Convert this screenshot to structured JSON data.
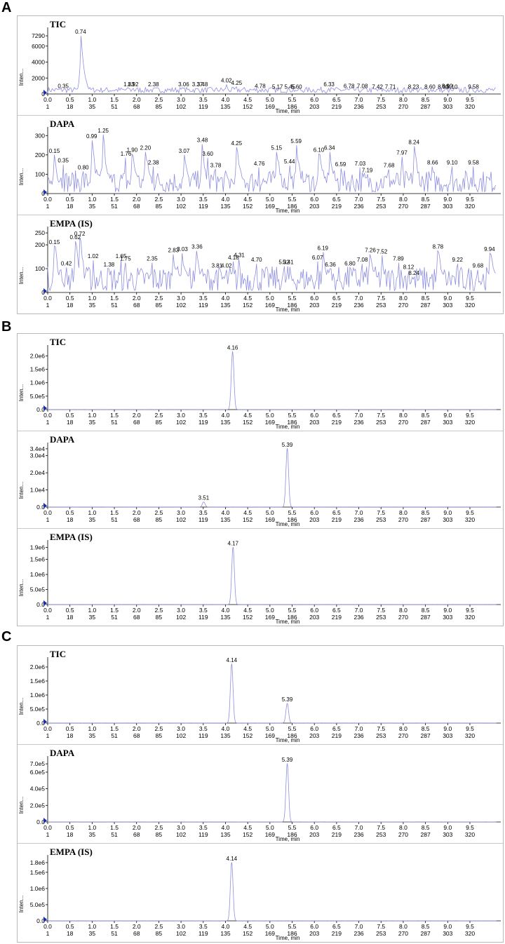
{
  "figure": {
    "sections": [
      {
        "letter": "A",
        "panels": [
          {
            "title": "TIC",
            "ylabel": "Inten...",
            "xlabel": "Time, min",
            "ymax": 8000,
            "y_ticks": [
              {
                "v": 0,
                "label": "0"
              },
              {
                "v": 2000,
                "label": "2000"
              },
              {
                "v": 4000,
                "label": "4000"
              },
              {
                "v": 6000,
                "label": "6000"
              },
              {
                "v": 7290,
                "label": "7290"
              }
            ],
            "peaks": [
              {
                "x": 0.35,
                "y": 500
              },
              {
                "x": 0.74,
                "y": 7290
              },
              {
                "x": 1.83,
                "y": 700
              },
              {
                "x": 1.92,
                "y": 700
              },
              {
                "x": 2.38,
                "y": 700
              },
              {
                "x": 3.06,
                "y": 700
              },
              {
                "x": 3.37,
                "y": 700
              },
              {
                "x": 3.48,
                "y": 700
              },
              {
                "x": 4.02,
                "y": 1200
              },
              {
                "x": 4.25,
                "y": 900
              },
              {
                "x": 4.78,
                "y": 500
              },
              {
                "x": 5.17,
                "y": 400
              },
              {
                "x": 5.45,
                "y": 400
              },
              {
                "x": 5.6,
                "y": 400
              },
              {
                "x": 6.33,
                "y": 700
              },
              {
                "x": 6.78,
                "y": 500
              },
              {
                "x": 7.08,
                "y": 500
              },
              {
                "x": 7.42,
                "y": 400
              },
              {
                "x": 7.71,
                "y": 400
              },
              {
                "x": 8.23,
                "y": 400
              },
              {
                "x": 8.6,
                "y": 400
              },
              {
                "x": 8.9,
                "y": 400
              },
              {
                "x": 8.99,
                "y": 500
              },
              {
                "x": 9.1,
                "y": 400
              },
              {
                "x": 9.58,
                "y": 400
              }
            ],
            "peak_labels": [
              "0.35",
              "0.74",
              "1.83",
              "1.92",
              "2.38",
              "3.06",
              "3.37",
              "3.48",
              "4.02",
              "4.25",
              "4.78",
              "5.17",
              "5.45",
              "5.60",
              "6.33",
              "6.78",
              "7.08",
              "7.42",
              "7.71",
              "8.23",
              "8.60",
              "8.90",
              "8.99",
              "9.10",
              "9.58"
            ],
            "noise": true,
            "baseline": 500,
            "noise_amp": 350
          },
          {
            "title": "DAPA",
            "ylabel": "Inten...",
            "xlabel": "Time, min",
            "ymax": 330,
            "y_ticks": [
              {
                "v": 0,
                "label": "0"
              },
              {
                "v": 100,
                "label": "100"
              },
              {
                "v": 200,
                "label": "200"
              },
              {
                "v": 300,
                "label": "300"
              }
            ],
            "peaks": [
              {
                "x": 0.15,
                "y": 200
              },
              {
                "x": 0.35,
                "y": 150
              },
              {
                "x": 0.8,
                "y": 115
              },
              {
                "x": 0.99,
                "y": 275
              },
              {
                "x": 1.25,
                "y": 305
              },
              {
                "x": 1.76,
                "y": 185
              },
              {
                "x": 1.9,
                "y": 205
              },
              {
                "x": 2.2,
                "y": 215
              },
              {
                "x": 2.38,
                "y": 140
              },
              {
                "x": 3.07,
                "y": 200
              },
              {
                "x": 3.48,
                "y": 255
              },
              {
                "x": 3.6,
                "y": 185
              },
              {
                "x": 3.78,
                "y": 125
              },
              {
                "x": 4.25,
                "y": 240
              },
              {
                "x": 4.76,
                "y": 135
              },
              {
                "x": 5.15,
                "y": 215
              },
              {
                "x": 5.44,
                "y": 145
              },
              {
                "x": 5.59,
                "y": 250
              },
              {
                "x": 6.1,
                "y": 205
              },
              {
                "x": 6.34,
                "y": 215
              },
              {
                "x": 6.59,
                "y": 130
              },
              {
                "x": 7.03,
                "y": 135
              },
              {
                "x": 7.19,
                "y": 100
              },
              {
                "x": 7.68,
                "y": 125
              },
              {
                "x": 7.97,
                "y": 190
              },
              {
                "x": 8.24,
                "y": 245
              },
              {
                "x": 8.66,
                "y": 140
              },
              {
                "x": 9.1,
                "y": 140
              },
              {
                "x": 9.58,
                "y": 140
              }
            ],
            "peak_labels": [
              "0.15",
              "0.35",
              "0.80",
              "0.99",
              "1.25",
              "1.76",
              "1.90",
              "2.20",
              "2.38",
              "3.07",
              "3.48",
              "3.60",
              "3.78",
              "4.25",
              "4.76",
              "5.15",
              "5.44",
              "5.59",
              "6.10",
              "6.34",
              "6.59",
              "7.03",
              "7.19",
              "7.68",
              "7.97",
              "8.24",
              "8.66",
              "9.10",
              "9.58"
            ],
            "noise": true,
            "baseline": 60,
            "noise_amp": 60
          },
          {
            "title": "EMPA (IS)",
            "ylabel": "Inten...",
            "xlabel": "Time, min",
            "ymax": 265,
            "y_ticks": [
              {
                "v": 0,
                "label": "0"
              },
              {
                "v": 100,
                "label": "100"
              },
              {
                "v": 200,
                "label": "200"
              },
              {
                "v": 250,
                "label": "250"
              }
            ],
            "peaks": [
              {
                "x": 0.15,
                "y": 195
              },
              {
                "x": 0.42,
                "y": 105
              },
              {
                "x": 0.62,
                "y": 215
              },
              {
                "x": 0.72,
                "y": 230
              },
              {
                "x": 1.02,
                "y": 135
              },
              {
                "x": 1.38,
                "y": 100
              },
              {
                "x": 1.65,
                "y": 135
              },
              {
                "x": 1.75,
                "y": 125
              },
              {
                "x": 2.35,
                "y": 125
              },
              {
                "x": 2.83,
                "y": 160
              },
              {
                "x": 3.03,
                "y": 165
              },
              {
                "x": 3.36,
                "y": 175
              },
              {
                "x": 3.81,
                "y": 95
              },
              {
                "x": 4.02,
                "y": 95
              },
              {
                "x": 4.18,
                "y": 130
              },
              {
                "x": 4.31,
                "y": 140
              },
              {
                "x": 4.7,
                "y": 120
              },
              {
                "x": 5.32,
                "y": 110
              },
              {
                "x": 5.41,
                "y": 110
              },
              {
                "x": 6.07,
                "y": 130
              },
              {
                "x": 6.19,
                "y": 170
              },
              {
                "x": 6.36,
                "y": 100
              },
              {
                "x": 6.8,
                "y": 105
              },
              {
                "x": 7.08,
                "y": 120
              },
              {
                "x": 7.26,
                "y": 160
              },
              {
                "x": 7.52,
                "y": 155
              },
              {
                "x": 7.89,
                "y": 125
              },
              {
                "x": 8.12,
                "y": 90
              },
              {
                "x": 8.24,
                "y": 65
              },
              {
                "x": 8.78,
                "y": 175
              },
              {
                "x": 9.22,
                "y": 120
              },
              {
                "x": 9.68,
                "y": 95
              },
              {
                "x": 9.94,
                "y": 165
              }
            ],
            "peak_labels": [
              "0.15",
              "0.42",
              "0.62",
              "0.72",
              "1.02",
              "1.38",
              "1.65",
              "1.75",
              "2.35",
              "2.83",
              "3.03",
              "3.36",
              "3.81",
              "4.02",
              "4.18",
              "4.31",
              "4.70",
              "5.32",
              "5.41",
              "6.07",
              "6.19",
              "6.36",
              "6.80",
              "7.08",
              "7.26",
              "7.52",
              "7.89",
              "8.12",
              "8.24",
              "8.78",
              "9.22",
              "9.68",
              "9.94"
            ],
            "noise": true,
            "baseline": 55,
            "noise_amp": 55
          }
        ]
      },
      {
        "letter": "B",
        "panels": [
          {
            "title": "TIC",
            "ylabel": "Inten...",
            "xlabel": "Time, min",
            "ymax": 2300000,
            "y_ticks": [
              {
                "v": 0,
                "label": "0.0"
              },
              {
                "v": 500000,
                "label": "5.0e5"
              },
              {
                "v": 1000000,
                "label": "1.0e6"
              },
              {
                "v": 1500000,
                "label": "1.5e6"
              },
              {
                "v": 2000000,
                "label": "2.0e6"
              }
            ],
            "peaks": [
              {
                "x": 4.16,
                "y": 2150000
              }
            ],
            "peak_labels": [
              "4.16"
            ],
            "noise": false
          },
          {
            "title": "DAPA",
            "ylabel": "Inten...",
            "xlabel": "Time, min",
            "ymax": 36000,
            "y_ticks": [
              {
                "v": 0,
                "label": "0.0"
              },
              {
                "v": 10000,
                "label": "1.0e4"
              },
              {
                "v": 20000,
                "label": "2.0e4"
              },
              {
                "v": 30000,
                "label": "3.0e4"
              },
              {
                "v": 34000,
                "label": "3.4e4"
              }
            ],
            "peaks": [
              {
                "x": 3.51,
                "y": 3000
              },
              {
                "x": 5.39,
                "y": 34000
              }
            ],
            "peak_labels": [
              "3.51",
              "5.39"
            ],
            "noise": false
          },
          {
            "title": "EMPA (IS)",
            "ylabel": "Inten...",
            "xlabel": "Time, min",
            "ymax": 2050000,
            "y_ticks": [
              {
                "v": 0,
                "label": "0.0"
              },
              {
                "v": 500000,
                "label": "5.0e5"
              },
              {
                "v": 1000000,
                "label": "1.0e6"
              },
              {
                "v": 1500000,
                "label": "1.5e6"
              },
              {
                "v": 1900000,
                "label": "1.9e6"
              }
            ],
            "peaks": [
              {
                "x": 4.17,
                "y": 1900000
              }
            ],
            "peak_labels": [
              "4.17"
            ],
            "noise": false
          }
        ]
      },
      {
        "letter": "C",
        "panels": [
          {
            "title": "TIC",
            "ylabel": "Inten...",
            "xlabel": "Time, min",
            "ymax": 2250000,
            "y_ticks": [
              {
                "v": 0,
                "label": "0.0"
              },
              {
                "v": 500000,
                "label": "5.0e5"
              },
              {
                "v": 1000000,
                "label": "1.0e6"
              },
              {
                "v": 1500000,
                "label": "1.5e6"
              },
              {
                "v": 2000000,
                "label": "2.0e6"
              }
            ],
            "peaks": [
              {
                "x": 4.14,
                "y": 2100000
              },
              {
                "x": 5.39,
                "y": 700000
              }
            ],
            "peak_labels": [
              "4.14",
              "5.39"
            ],
            "noise": false
          },
          {
            "title": "DAPA",
            "ylabel": "Inten...",
            "xlabel": "Time, min",
            "ymax": 760000,
            "y_ticks": [
              {
                "v": 0,
                "label": "0.0"
              },
              {
                "v": 200000,
                "label": "2.0e5"
              },
              {
                "v": 400000,
                "label": "4.0e5"
              },
              {
                "v": 600000,
                "label": "6.0e5"
              },
              {
                "v": 700000,
                "label": "7.0e5"
              }
            ],
            "peaks": [
              {
                "x": 5.39,
                "y": 700000
              }
            ],
            "peak_labels": [
              "5.39"
            ],
            "noise": false
          },
          {
            "title": "EMPA (IS)",
            "ylabel": "Inten...",
            "xlabel": "Time, min",
            "ymax": 1950000,
            "y_ticks": [
              {
                "v": 0,
                "label": "0.0"
              },
              {
                "v": 500000,
                "label": "5.0e5"
              },
              {
                "v": 1000000,
                "label": "1.0e6"
              },
              {
                "v": 1500000,
                "label": "1.5e6"
              },
              {
                "v": 1800000,
                "label": "1.8e6"
              }
            ],
            "peaks": [
              {
                "x": 4.14,
                "y": 1800000
              }
            ],
            "peak_labels": [
              "4.14"
            ],
            "noise": false
          }
        ]
      }
    ]
  },
  "chart_data": {
    "type": "line",
    "x_ticks_time": [
      "0.0",
      "0.5",
      "1.0",
      "1.5",
      "2.0",
      "2.5",
      "3.0",
      "3.5",
      "4.0",
      "4.5",
      "5.0",
      "5.5",
      "6.0",
      "6.5",
      "7.0",
      "7.5",
      "8.0",
      "8.5",
      "9.0",
      "9.5"
    ],
    "x_ticks_scan": [
      "1",
      "18",
      "35",
      "51",
      "68",
      "85",
      "102",
      "119",
      "135",
      "152",
      "169",
      "186",
      "203",
      "219",
      "236",
      "253",
      "270",
      "287",
      "303",
      "320"
    ],
    "xlim": [
      0,
      10.1
    ],
    "xlabel": "Time, min",
    "colors": {
      "trace": "#8f8fe0",
      "marker": "#1a2fb0"
    }
  }
}
